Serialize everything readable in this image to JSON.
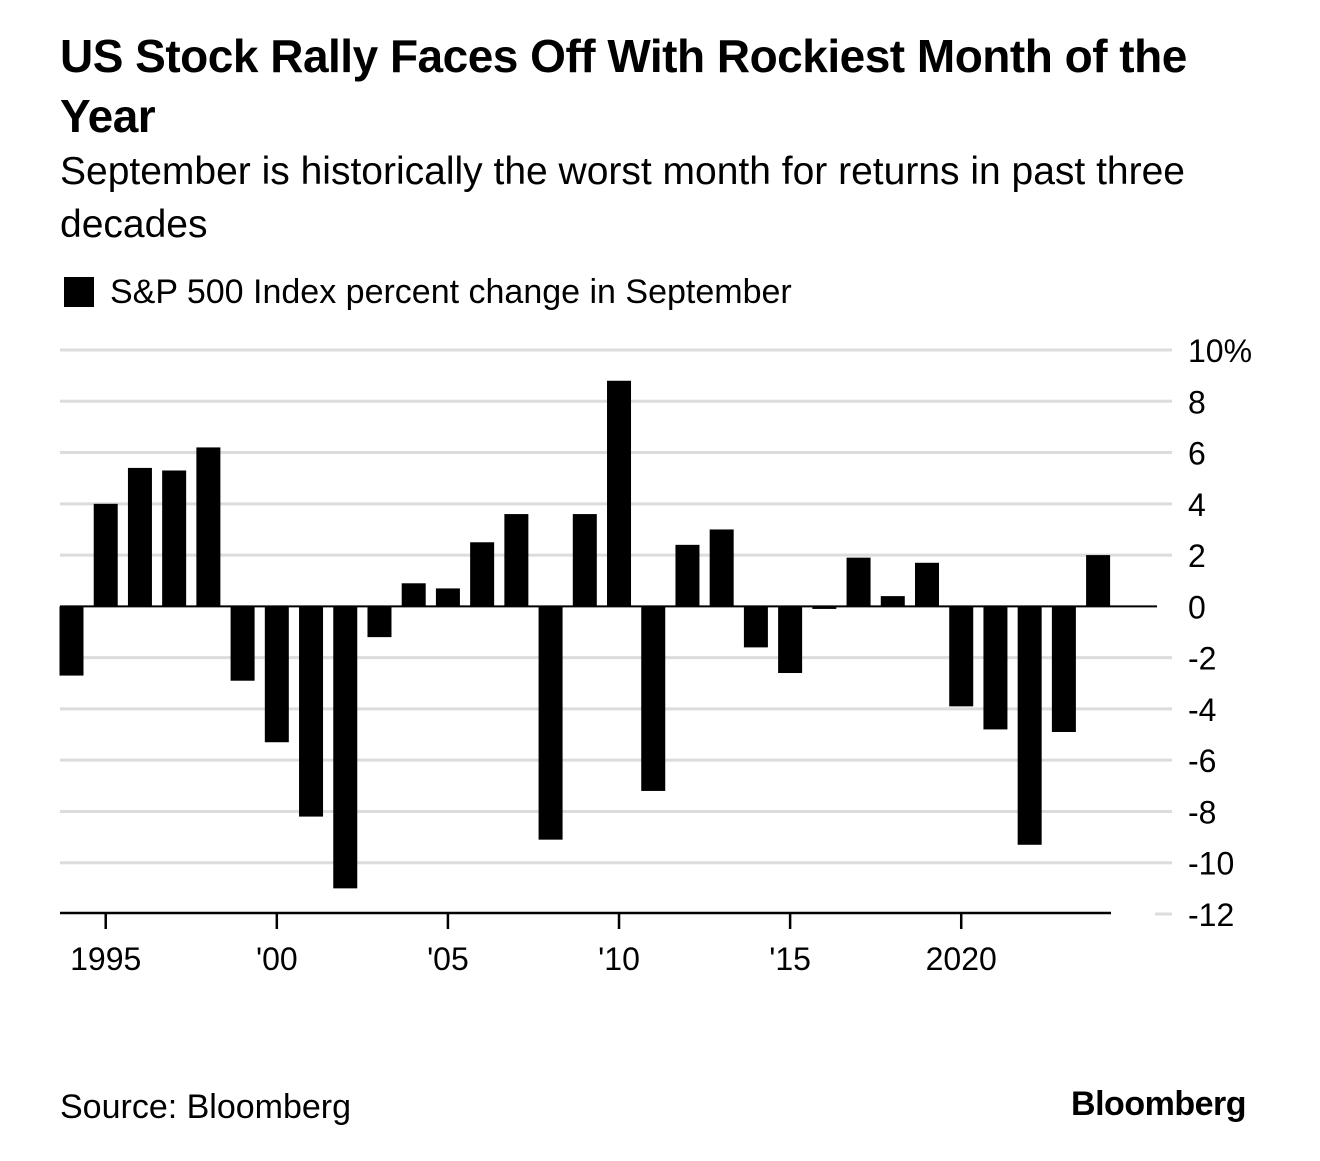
{
  "header": {
    "title": "US Stock Rally Faces Off With Rockiest Month of the Year",
    "subtitle": "September is historically the worst month for returns in past three decades"
  },
  "legend": {
    "label": "S&P 500 Index percent change in September"
  },
  "footer": {
    "source": "Source: Bloomberg",
    "logo": "Bloomberg"
  },
  "chart_data": {
    "type": "bar",
    "categories": [
      1994,
      1995,
      1996,
      1997,
      1998,
      1999,
      2000,
      2001,
      2002,
      2003,
      2004,
      2005,
      2006,
      2007,
      2008,
      2009,
      2010,
      2011,
      2012,
      2013,
      2014,
      2015,
      2016,
      2017,
      2018,
      2019,
      2020,
      2021,
      2022,
      2023,
      2024
    ],
    "values": [
      -2.7,
      4.0,
      5.4,
      5.3,
      6.2,
      -2.9,
      -5.3,
      -8.2,
      -11.0,
      -1.2,
      0.9,
      0.7,
      2.5,
      3.6,
      -9.1,
      3.6,
      8.8,
      -7.2,
      2.4,
      3.0,
      -1.6,
      -2.6,
      -0.1,
      1.9,
      0.4,
      1.7,
      -3.9,
      -4.8,
      -9.3,
      -4.9,
      2.0
    ],
    "ylim": [
      -12,
      10
    ],
    "y_ticks": [
      10,
      8,
      6,
      4,
      2,
      0,
      -2,
      -4,
      -6,
      -8,
      -10,
      -12
    ],
    "y_tick_labels": [
      "10%",
      "8",
      "6",
      "4",
      "2",
      "0",
      "-2",
      "-4",
      "-6",
      "-8",
      "-10",
      "-12"
    ],
    "x_ticks": [
      1995,
      2000,
      2005,
      2010,
      2015,
      2020
    ],
    "x_tick_labels": [
      "1995",
      "'00",
      "'05",
      "'10",
      "'15",
      "2020"
    ],
    "grid": true,
    "bar_color": "#000000",
    "grid_color": "#dcdcdc"
  }
}
